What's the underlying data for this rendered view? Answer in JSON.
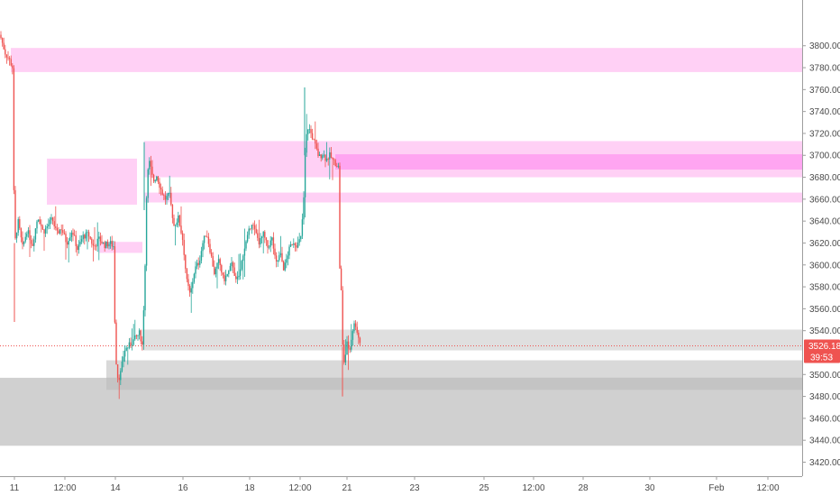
{
  "chart_data": {
    "type": "candlestick",
    "title": "",
    "xlabel": "",
    "ylabel": "",
    "ylim": [
      3413,
      3822
    ],
    "xlim": [
      0,
      960
    ],
    "colors": {
      "up": "#26a69a",
      "down": "#ef5350",
      "zone_pink": "#ffc8f3",
      "zone_pink_strong": "#ff9ef0",
      "zone_gray": "#c8c8c8",
      "zone_gray_dark": "#a8a8a8",
      "price_line": "#ef5350",
      "axis_text": "#4a4a4a"
    },
    "y_ticks": [
      {
        "value": 3800,
        "label": "3800.00"
      },
      {
        "value": 3780,
        "label": "3780.00"
      },
      {
        "value": 3760,
        "label": "3760.00"
      },
      {
        "value": 3740,
        "label": "3740.00"
      },
      {
        "value": 3720,
        "label": "3720.00"
      },
      {
        "value": 3700,
        "label": "3700.00"
      },
      {
        "value": 3680,
        "label": "3680.00"
      },
      {
        "value": 3660,
        "label": "3660.00"
      },
      {
        "value": 3640,
        "label": "3640.00"
      },
      {
        "value": 3620,
        "label": "3620.00"
      },
      {
        "value": 3600,
        "label": "3600.00"
      },
      {
        "value": 3580,
        "label": "3580.00"
      },
      {
        "value": 3560,
        "label": "3560.00"
      },
      {
        "value": 3540,
        "label": "3540.00"
      },
      {
        "value": 3500,
        "label": "3500.00"
      },
      {
        "value": 3480,
        "label": "3480.00"
      },
      {
        "value": 3460,
        "label": "3460.00"
      },
      {
        "value": 3440,
        "label": "3440.00"
      },
      {
        "value": 3420,
        "label": "3420.00"
      }
    ],
    "x_ticks": [
      {
        "x": 16,
        "label": "11"
      },
      {
        "x": 72,
        "label": "12:00"
      },
      {
        "x": 128,
        "label": "14"
      },
      {
        "x": 203,
        "label": "16"
      },
      {
        "x": 277,
        "label": "18"
      },
      {
        "x": 333,
        "label": "12:00"
      },
      {
        "x": 385,
        "label": "21"
      },
      {
        "x": 460,
        "label": "23"
      },
      {
        "x": 537,
        "label": "25"
      },
      {
        "x": 592,
        "label": "12:00"
      },
      {
        "x": 647,
        "label": "28"
      },
      {
        "x": 721,
        "label": "30"
      },
      {
        "x": 795,
        "label": "Feb"
      },
      {
        "x": 852,
        "label": "12:00"
      }
    ],
    "zones": [
      {
        "x0": 12,
        "x1": 960,
        "top": 3798,
        "bottom": 3776,
        "color": "#ffc8f3"
      },
      {
        "x0": 52,
        "x1": 152,
        "top": 3697,
        "bottom": 3655,
        "color": "#ffc8f3"
      },
      {
        "x0": 160,
        "x1": 960,
        "top": 3713,
        "bottom": 3680,
        "color": "#ffc8f3"
      },
      {
        "x0": 372,
        "x1": 960,
        "top": 3701,
        "bottom": 3687,
        "color": "#ff9ef0"
      },
      {
        "x0": 160,
        "x1": 960,
        "top": 3666,
        "bottom": 3657,
        "color": "#ffc8f3"
      },
      {
        "x0": 110,
        "x1": 158,
        "top": 3621,
        "bottom": 3611,
        "color": "#ffc8f3"
      },
      {
        "x0": 158,
        "x1": 960,
        "top": 3541,
        "bottom": 3522,
        "color": "#d9d9d9"
      },
      {
        "x0": 118,
        "x1": 960,
        "top": 3513,
        "bottom": 3486,
        "color": "#d2d2d2"
      },
      {
        "x0": 118,
        "x1": 960,
        "top": 3497,
        "bottom": 3486,
        "color": "#a9a9a9"
      },
      {
        "x0": 0,
        "x1": 960,
        "top": 3497,
        "bottom": 3435,
        "color": "#c8c8c8"
      }
    ],
    "path_up_color": "#26a69a",
    "price_path": [
      [
        0,
        3810
      ],
      [
        6,
        3793
      ],
      [
        10,
        3788
      ],
      [
        13,
        3782
      ],
      [
        14,
        3780
      ],
      [
        16,
        3617
      ],
      [
        20,
        3640
      ],
      [
        25,
        3616
      ],
      [
        30,
        3632
      ],
      [
        36,
        3618
      ],
      [
        42,
        3645
      ],
      [
        48,
        3630
      ],
      [
        53,
        3636
      ],
      [
        58,
        3642
      ],
      [
        63,
        3628
      ],
      [
        68,
        3634
      ],
      [
        74,
        3620
      ],
      [
        80,
        3632
      ],
      [
        86,
        3614
      ],
      [
        92,
        3626
      ],
      [
        98,
        3628
      ],
      [
        104,
        3616
      ],
      [
        110,
        3624
      ],
      [
        116,
        3618
      ],
      [
        122,
        3620
      ],
      [
        126,
        3617
      ],
      [
        128,
        3520
      ],
      [
        131,
        3495
      ],
      [
        134,
        3502
      ],
      [
        138,
        3522
      ],
      [
        144,
        3527
      ],
      [
        150,
        3533
      ],
      [
        155,
        3538
      ],
      [
        158,
        3526
      ],
      [
        161,
        3600
      ],
      [
        163,
        3680
      ],
      [
        166,
        3694
      ],
      [
        170,
        3676
      ],
      [
        174,
        3682
      ],
      [
        178,
        3670
      ],
      [
        183,
        3660
      ],
      [
        188,
        3664
      ],
      [
        193,
        3636
      ],
      [
        198,
        3643
      ],
      [
        203,
        3622
      ],
      [
        207,
        3586
      ],
      [
        211,
        3572
      ],
      [
        216,
        3596
      ],
      [
        221,
        3603
      ],
      [
        225,
        3620
      ],
      [
        229,
        3630
      ],
      [
        233,
        3614
      ],
      [
        238,
        3592
      ],
      [
        243,
        3604
      ],
      [
        248,
        3586
      ],
      [
        253,
        3592
      ],
      [
        258,
        3602
      ],
      [
        262,
        3584
      ],
      [
        266,
        3592
      ],
      [
        270,
        3612
      ],
      [
        275,
        3626
      ],
      [
        279,
        3640
      ],
      [
        283,
        3630
      ],
      [
        288,
        3620
      ],
      [
        292,
        3628
      ],
      [
        297,
        3616
      ],
      [
        302,
        3624
      ],
      [
        306,
        3600
      ],
      [
        311,
        3610
      ],
      [
        315,
        3596
      ],
      [
        320,
        3612
      ],
      [
        325,
        3622
      ],
      [
        330,
        3618
      ],
      [
        334,
        3625
      ],
      [
        337,
        3660
      ],
      [
        339,
        3712
      ],
      [
        342,
        3726
      ],
      [
        346,
        3718
      ],
      [
        350,
        3708
      ],
      [
        354,
        3698
      ],
      [
        358,
        3702
      ],
      [
        362,
        3696
      ],
      [
        366,
        3700
      ],
      [
        370,
        3694
      ],
      [
        374,
        3692
      ],
      [
        376,
        3688
      ],
      [
        377,
        3598
      ],
      [
        379,
        3570
      ],
      [
        380,
        3528
      ],
      [
        382,
        3510
      ],
      [
        385,
        3528
      ],
      [
        388,
        3522
      ],
      [
        391,
        3540
      ],
      [
        394,
        3548
      ],
      [
        398,
        3533
      ],
      [
        401,
        3526
      ]
    ],
    "last_price": 3526.18,
    "last_price_label": "3526.18",
    "countdown_label": "39:53"
  }
}
